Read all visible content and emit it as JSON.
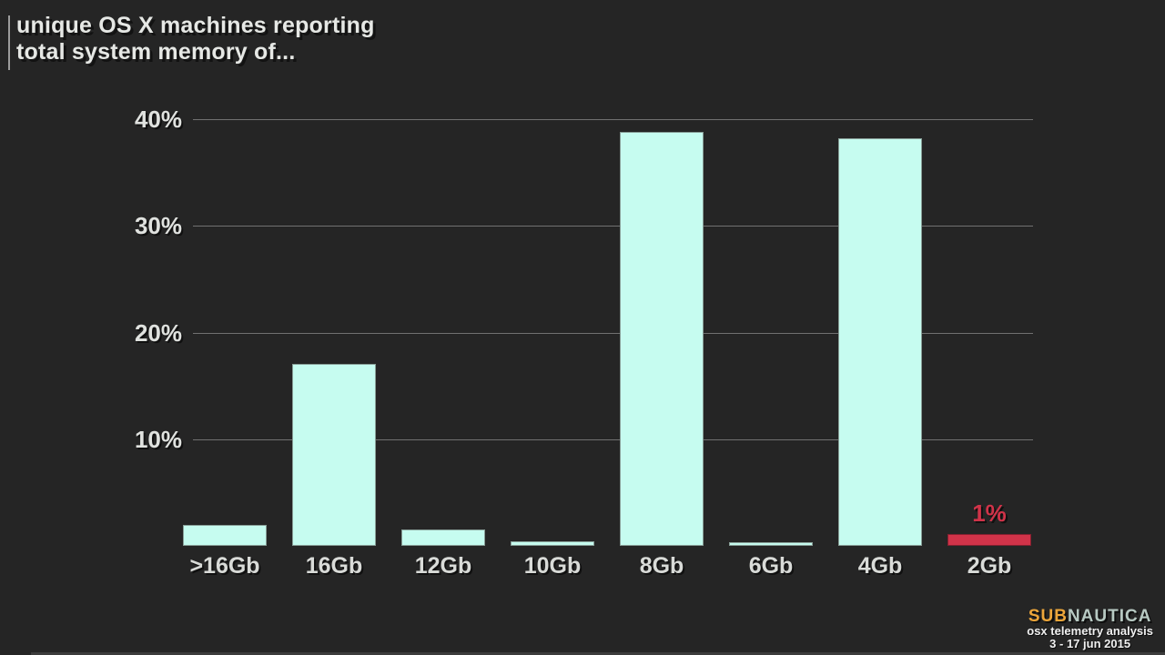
{
  "title": {
    "line1": "unique OS X machines reporting",
    "line2": "total system memory of..."
  },
  "chart_data": {
    "type": "bar",
    "title": "unique OS X machines reporting total system memory of...",
    "categories": [
      ">16Gb",
      "16Gb",
      "12Gb",
      "10Gb",
      "8Gb",
      "6Gb",
      "4Gb",
      "2Gb"
    ],
    "values": [
      2,
      17.1,
      1.5,
      0.4,
      38.8,
      0.35,
      38.2,
      1.1
    ],
    "ylim": [
      0,
      40
    ],
    "yticks": [
      10,
      20,
      30,
      40
    ],
    "ytick_labels": [
      "10%",
      "20%",
      "30%",
      "40%"
    ],
    "grid": true,
    "legend": "none",
    "bar_color": "#c6fcf0",
    "highlight_index": 7,
    "highlight_color": "#d13349",
    "annotations": [
      {
        "index": 7,
        "text": "1%"
      }
    ]
  },
  "footer": {
    "brand_sub": "SUB",
    "brand_rest": "NAUTICA",
    "line1": "osx telemetry analysis",
    "line2": "3 - 17 jun 2015"
  },
  "colors": {
    "background": "#252525",
    "bar": "#c6fcf0",
    "highlight": "#d13349",
    "gridline": "#717171",
    "text": "#e6e8e5",
    "brand_sub": "#eda63a",
    "brand_rest": "#b7c9c2"
  }
}
